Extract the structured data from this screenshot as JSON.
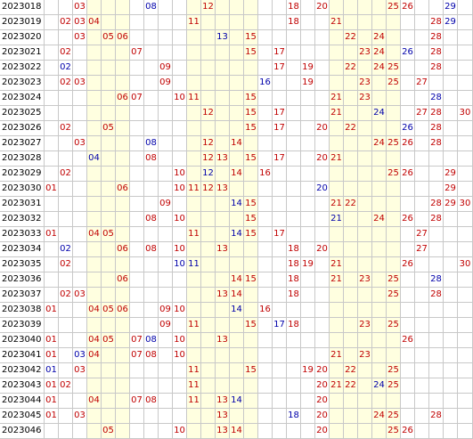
{
  "colors": {
    "red_number": "#c00000",
    "blue_number": "#0000aa",
    "highlight": "#ffffe0",
    "grid_line": "#c8c8c8"
  },
  "rows": [
    {
      "period": "2023018",
      "red": [
        3,
        12,
        18,
        20,
        25,
        26
      ],
      "blue": [
        8,
        29
      ]
    },
    {
      "period": "2023019",
      "red": [
        2,
        3,
        4,
        11,
        18,
        21,
        28
      ],
      "blue": [
        29
      ]
    },
    {
      "period": "2023020",
      "red": [
        3,
        5,
        6,
        15,
        22,
        24,
        28
      ],
      "blue": [
        13
      ]
    },
    {
      "period": "2023021",
      "red": [
        2,
        7,
        15,
        17,
        23,
        24,
        28
      ],
      "blue": [
        26
      ]
    },
    {
      "period": "2023022",
      "red": [
        9,
        17,
        19,
        22,
        24,
        25,
        28
      ],
      "blue": [
        2
      ]
    },
    {
      "period": "2023023",
      "red": [
        2,
        3,
        9,
        19,
        23,
        25,
        27
      ],
      "blue": [
        16
      ]
    },
    {
      "period": "2023024",
      "red": [
        6,
        7,
        10,
        11,
        15,
        21,
        23
      ],
      "blue": [
        28
      ]
    },
    {
      "period": "2023025",
      "red": [
        12,
        15,
        17,
        21,
        27,
        28,
        30
      ],
      "blue": [
        24
      ]
    },
    {
      "period": "2023026",
      "red": [
        2,
        5,
        15,
        17,
        20,
        22,
        28
      ],
      "blue": [
        26
      ]
    },
    {
      "period": "2023027",
      "red": [
        3,
        12,
        14,
        24,
        25,
        26,
        28
      ],
      "blue": [
        8
      ]
    },
    {
      "period": "2023028",
      "red": [
        8,
        12,
        13,
        15,
        17,
        20,
        21
      ],
      "blue": [
        4
      ]
    },
    {
      "period": "2023029",
      "red": [
        2,
        10,
        14,
        16,
        25,
        26,
        29
      ],
      "blue": [
        12
      ]
    },
    {
      "period": "2023030",
      "red": [
        1,
        6,
        10,
        11,
        12,
        13,
        29
      ],
      "blue": [
        20
      ]
    },
    {
      "period": "2023031",
      "red": [
        9,
        15,
        21,
        22,
        28,
        29,
        30
      ],
      "blue": [
        14
      ]
    },
    {
      "period": "2023032",
      "red": [
        8,
        10,
        15,
        24,
        26,
        28
      ],
      "blue": [
        21
      ]
    },
    {
      "period": "2023033",
      "red": [
        1,
        4,
        5,
        11,
        15,
        17,
        27
      ],
      "blue": [
        14
      ]
    },
    {
      "period": "2023034",
      "red": [
        6,
        8,
        10,
        13,
        18,
        20,
        27
      ],
      "blue": [
        2
      ]
    },
    {
      "period": "2023035",
      "red": [
        2,
        18,
        19,
        21,
        26,
        30
      ],
      "blue": [
        10,
        11
      ]
    },
    {
      "period": "2023036",
      "red": [
        6,
        14,
        15,
        18,
        21,
        23,
        25
      ],
      "blue": [
        28
      ]
    },
    {
      "period": "2023037",
      "red": [
        2,
        3,
        13,
        14,
        18,
        25,
        28
      ],
      "blue": []
    },
    {
      "period": "2023038",
      "red": [
        1,
        4,
        5,
        6,
        9,
        10,
        16
      ],
      "blue": [
        14
      ]
    },
    {
      "period": "2023039",
      "red": [
        9,
        11,
        15,
        18,
        23,
        25
      ],
      "blue": [
        17
      ]
    },
    {
      "period": "2023040",
      "red": [
        1,
        4,
        5,
        7,
        10,
        13,
        26
      ],
      "blue": [
        8
      ]
    },
    {
      "period": "2023041",
      "red": [
        1,
        4,
        7,
        8,
        10,
        21,
        23
      ],
      "blue": [
        3
      ]
    },
    {
      "period": "2023042",
      "red": [
        3,
        11,
        15,
        19,
        20,
        22,
        25
      ],
      "blue": [
        1
      ]
    },
    {
      "period": "2023043",
      "red": [
        1,
        2,
        11,
        20,
        21,
        22,
        25
      ],
      "blue": [
        24
      ]
    },
    {
      "period": "2023044",
      "red": [
        1,
        4,
        7,
        8,
        11,
        13,
        20
      ],
      "blue": [
        14
      ]
    },
    {
      "period": "2023045",
      "red": [
        1,
        3,
        13,
        20,
        24,
        25,
        28
      ],
      "blue": [
        18
      ]
    },
    {
      "period": "2023046",
      "red": [
        5,
        10,
        13,
        14,
        20,
        25,
        26
      ],
      "blue": []
    }
  ]
}
